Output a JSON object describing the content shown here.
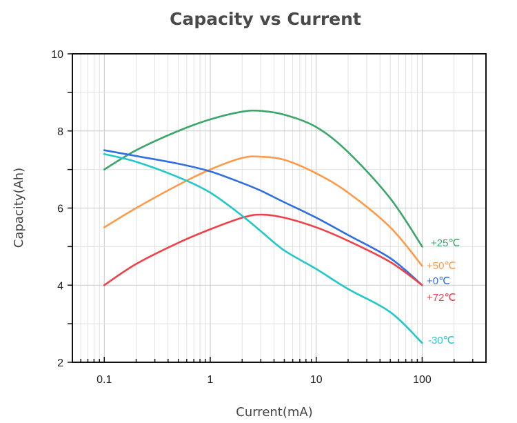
{
  "chart_data": {
    "type": "line",
    "title": "Capacity vs Current",
    "xlabel": "Current(mA)",
    "ylabel": "Capacity(Ah)",
    "xscale": "log",
    "xlim": [
      0.05,
      400
    ],
    "ylim": [
      2,
      10
    ],
    "xticks": [
      0.1,
      1,
      10,
      100
    ],
    "xtick_labels": [
      "0.1",
      "1",
      "10",
      "100"
    ],
    "yticks": [
      2,
      4,
      6,
      8,
      10
    ],
    "ytick_labels": [
      "2",
      "4",
      "6",
      "8",
      "10"
    ],
    "grid": true,
    "x": [
      0.1,
      0.2,
      0.5,
      1,
      2,
      3,
      5,
      10,
      20,
      50,
      100
    ],
    "series": [
      {
        "name": "+25℃",
        "color": "#3aa66a",
        "values": [
          7.0,
          7.5,
          8.0,
          8.3,
          8.5,
          8.52,
          8.42,
          8.1,
          7.45,
          6.25,
          5.0
        ]
      },
      {
        "name": "+50℃",
        "color": "#ff9a4a",
        "values": [
          5.5,
          6.0,
          6.6,
          7.0,
          7.3,
          7.33,
          7.25,
          6.9,
          6.4,
          5.5,
          4.5
        ]
      },
      {
        "name": "+0℃",
        "color": "#2f6fe0",
        "values": [
          7.5,
          7.35,
          7.15,
          6.95,
          6.65,
          6.45,
          6.15,
          5.75,
          5.3,
          4.7,
          4.0
        ]
      },
      {
        "name": "+72℃",
        "color": "#f04048",
        "values": [
          4.0,
          4.55,
          5.1,
          5.45,
          5.75,
          5.83,
          5.75,
          5.5,
          5.15,
          4.6,
          4.0
        ]
      },
      {
        "name": "-30℃",
        "color": "#22c8c8",
        "values": [
          7.4,
          7.2,
          6.8,
          6.4,
          5.8,
          5.4,
          4.9,
          4.42,
          3.9,
          3.3,
          2.5
        ]
      }
    ]
  }
}
